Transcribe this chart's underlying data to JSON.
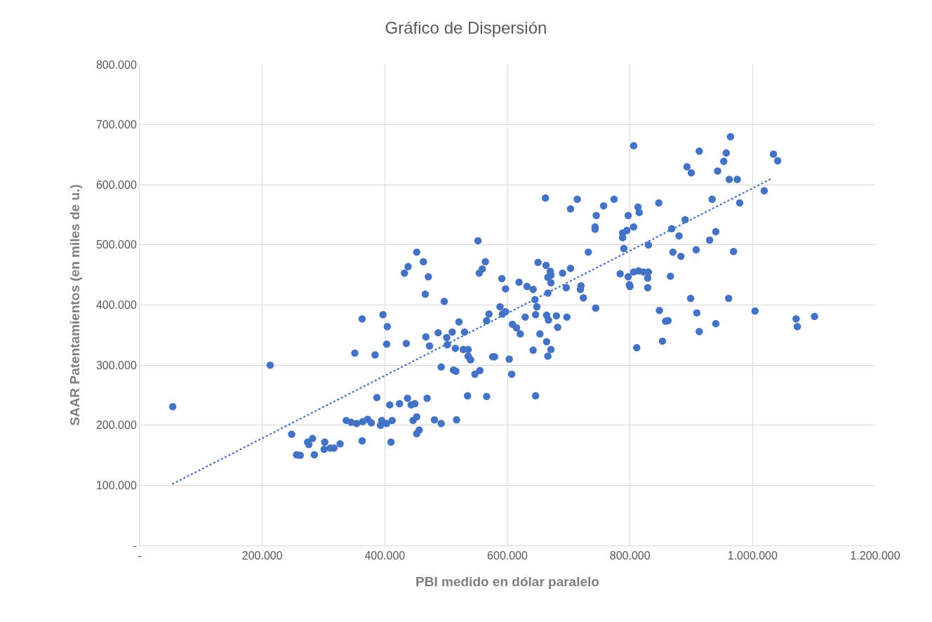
{
  "chart_data": {
    "type": "scatter",
    "title": "Gráfico de Dispersión",
    "xlabel": "PBI medido en dólar paralelo",
    "ylabel": "SAAR Patentamientos (en miles de u.)",
    "xlim": [
      0,
      1200000
    ],
    "ylim": [
      0,
      800000
    ],
    "xticks": [
      {
        "value": 0,
        "label": "-"
      },
      {
        "value": 200000,
        "label": "200.000"
      },
      {
        "value": 400000,
        "label": "400.000"
      },
      {
        "value": 600000,
        "label": "600.000"
      },
      {
        "value": 800000,
        "label": "800.000"
      },
      {
        "value": 1000000,
        "label": "1.000.000"
      },
      {
        "value": 1200000,
        "label": "1.200.000"
      }
    ],
    "yticks": [
      {
        "value": 0,
        "label": "-"
      },
      {
        "value": 100000,
        "label": "100.000"
      },
      {
        "value": 200000,
        "label": "200.000"
      },
      {
        "value": 300000,
        "label": "300.000"
      },
      {
        "value": 400000,
        "label": "400.000"
      },
      {
        "value": 500000,
        "label": "500.000"
      },
      {
        "value": 600000,
        "label": "600.000"
      },
      {
        "value": 700000,
        "label": "700.000"
      },
      {
        "value": 800000,
        "label": "800.000"
      }
    ],
    "grid": true,
    "marker": "circle",
    "series": [
      {
        "color": "#4472c4",
        "x": [
          54000,
          213000,
          248000,
          256000,
          262000,
          274000,
          276000,
          282000,
          285000,
          302000,
          301000,
          311000,
          317000,
          327000,
          337000,
          345000,
          354000,
          364000,
          363000,
          372000,
          378000,
          387000,
          395000,
          393000,
          403000,
          412000,
          410000,
          408000,
          424000,
          437000,
          443000,
          449000,
          452000,
          446000,
          456000,
          452000,
          469000,
          481000,
          492000,
          517000,
          535000,
          566000,
          646000,
          351000,
          384000,
          363000,
          397000,
          404000,
          403000,
          432000,
          438000,
          452000,
          463000,
          471000,
          466000,
          435000,
          467000,
          473000,
          497000,
          552000,
          564000,
          559000,
          554000,
          591000,
          597000,
          619000,
          650000,
          663000,
          670000,
          671000,
          666000,
          671000,
          632000,
          642000,
          666000,
          690000,
          703000,
          696000,
          720000,
          719000,
          724000,
          744000,
          645000,
          648000,
          646000,
          664000,
          667000,
          680000,
          697000,
          682000,
          629000,
          588000,
          597000,
          592000,
          570000,
          566000,
          521000,
          487000,
          510000,
          530000,
          501000,
          502000,
          515000,
          528000,
          536000,
          536000,
          540000,
          608000,
          615000,
          621000,
          653000,
          664000,
          671000,
          666000,
          642000,
          603000,
          607000,
          576000,
          579000,
          492000,
          512000,
          516000,
          547000,
          555000,
          662000,
          714000,
          703000,
          757000,
          774000,
          745000,
          743000,
          743000,
          788000,
          795000,
          788000,
          790000,
          732000,
          806000,
          913000,
          964000,
          957000,
          953000,
          943000,
          893000,
          900000,
          1034000,
          1041000,
          962000,
          975000,
          1019000,
          934000,
          979000,
          847000,
          797000,
          813000,
          815000,
          806000,
          830000,
          868000,
          880000,
          890000,
          930000,
          940000,
          908000,
          969000,
          870000,
          883000,
          784000,
          806000,
          814000,
          822000,
          830000,
          797000,
          829000,
          799000,
          800000,
          829000,
          866000,
          899000,
          961000,
          1004000,
          1071000,
          1073000,
          1101000,
          848000,
          909000,
          862000,
          858000,
          940000,
          913000,
          853000,
          811000
        ],
        "values": [
          231000,
          300000,
          185000,
          151000,
          150000,
          172000,
          168000,
          178000,
          151000,
          172000,
          160000,
          162000,
          162000,
          169000,
          208000,
          205000,
          203000,
          206000,
          174000,
          210000,
          204000,
          246000,
          208000,
          200000,
          203000,
          208000,
          172000,
          234000,
          236000,
          245000,
          234000,
          236000,
          214000,
          208000,
          192000,
          186000,
          245000,
          209000,
          203000,
          209000,
          249000,
          248000,
          249000,
          320000,
          317000,
          377000,
          384000,
          364000,
          335000,
          453000,
          464000,
          488000,
          472000,
          447000,
          418000,
          336000,
          347000,
          332000,
          406000,
          507000,
          472000,
          460000,
          453000,
          444000,
          427000,
          438000,
          471000,
          466000,
          456000,
          450000,
          446000,
          437000,
          431000,
          426000,
          420000,
          453000,
          461000,
          429000,
          432000,
          426000,
          412000,
          395000,
          409000,
          397000,
          384000,
          383000,
          375000,
          382000,
          380000,
          363000,
          380000,
          397000,
          389000,
          385000,
          385000,
          374000,
          372000,
          354000,
          355000,
          355000,
          346000,
          334000,
          328000,
          326000,
          326000,
          315000,
          309000,
          368000,
          362000,
          352000,
          352000,
          339000,
          326000,
          315000,
          325000,
          310000,
          285000,
          314000,
          314000,
          297000,
          292000,
          290000,
          285000,
          291000,
          578000,
          576000,
          560000,
          565000,
          576000,
          549000,
          530000,
          526000,
          520000,
          524000,
          512000,
          494000,
          488000,
          665000,
          656000,
          680000,
          653000,
          639000,
          623000,
          630000,
          620000,
          651000,
          640000,
          609000,
          609000,
          590000,
          576000,
          570000,
          570000,
          549000,
          563000,
          554000,
          530000,
          500000,
          527000,
          515000,
          542000,
          508000,
          522000,
          492000,
          489000,
          488000,
          481000,
          452000,
          455000,
          457000,
          455000,
          455000,
          447000,
          445000,
          434000,
          431000,
          429000,
          448000,
          411000,
          411000,
          390000,
          377000,
          364000,
          381000,
          391000,
          387000,
          374000,
          373000,
          369000,
          356000,
          340000,
          329000
        ]
      },
      {
        "type": "line",
        "color": "#4472c4",
        "line_style": "dotted",
        "marker": "none",
        "x": [
          53000,
          1032000
        ],
        "values": [
          102000,
          611000
        ]
      }
    ]
  }
}
